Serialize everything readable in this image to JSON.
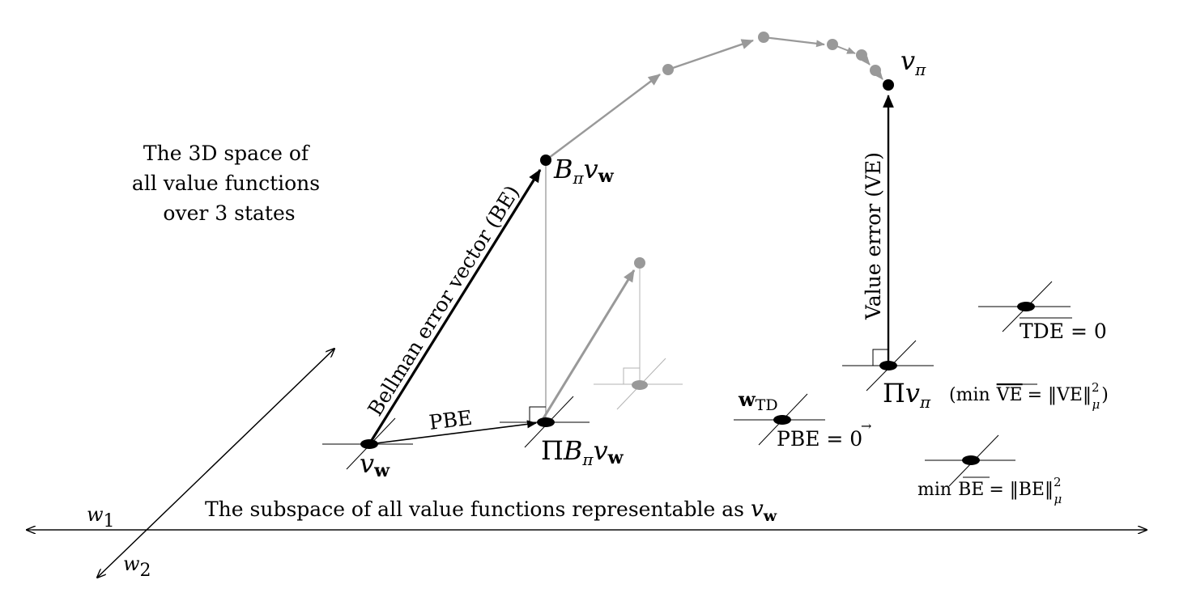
{
  "space_caption": [
    "The 3D space of",
    "all value functions",
    "over 3 states"
  ],
  "subspace_caption": "The subspace of all value functions representable as",
  "axes": {
    "w1": "w",
    "w1_sub": "1",
    "w2": "w",
    "w2_sub": "2"
  },
  "points": {
    "v_w": {
      "main": "v",
      "sub": "w"
    },
    "B_pi_v_w": {
      "main": "B",
      "sub_pi": "π",
      "v": "v",
      "sub_w": "w"
    },
    "Pi_B_pi_v_w": {
      "Pi": "Π",
      "B": "B",
      "sub_pi": "π",
      "v": "v",
      "sub_w": "w"
    },
    "v_pi": {
      "main": "v",
      "sub": "π"
    },
    "Pi_v_pi": {
      "Pi": "Π",
      "v": "v",
      "sub": "π"
    },
    "w_TD": {
      "main": "w",
      "sub": "TD"
    }
  },
  "vector_labels": {
    "bellman_error": "Bellman error vector (BE)",
    "value_error": "Value error (VE)",
    "pbe": "PBE"
  },
  "annotations": {
    "min_ve_prefix": "(min",
    "ve_bar": "VE",
    "ve_norm": "= ‖VE‖",
    "ve_sup": "2",
    "ve_sub": "μ",
    "ve_close": ")",
    "pbe_zero": "PBE = 0",
    "pbe_zero_vec": "→",
    "tde_bar": "TDE",
    "tde_zero": "= 0",
    "min_be_prefix": "min",
    "be_bar": "BE",
    "be_norm": "= ‖BE‖",
    "be_sup": "2",
    "be_sub": "μ"
  },
  "colors": {
    "black": "#000000",
    "gray_arrow": "#999999",
    "light_gray": "#b3b3b3"
  }
}
